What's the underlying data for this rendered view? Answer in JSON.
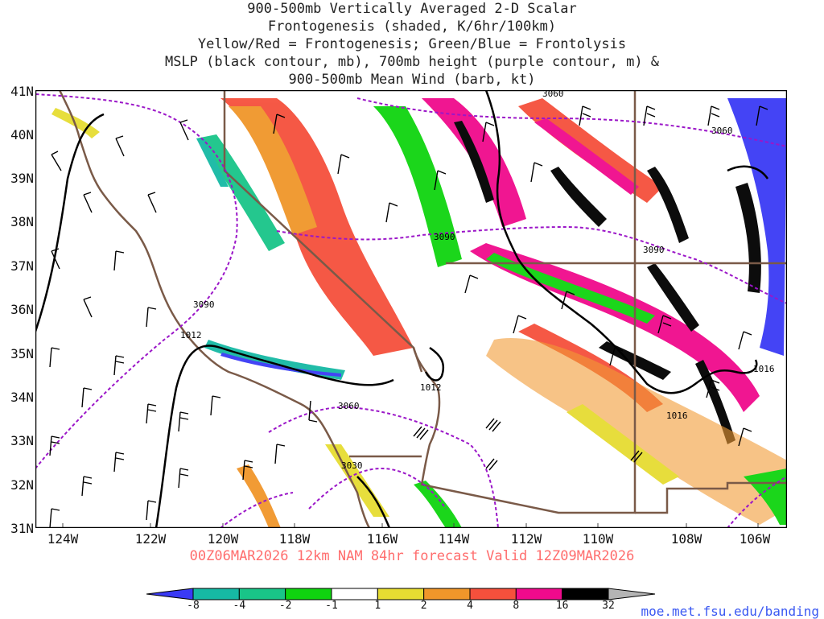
{
  "title": [
    "900-500mb Vertically Averaged 2-D Scalar",
    "Frontogenesis (shaded, K/6hr/100km)",
    "Yellow/Red = Frontogenesis;  Green/Blue = Frontolysis",
    "MSLP (black contour, mb), 700mb height (purple contour, m) &",
    "900-500mb Mean Wind (barb, kt)"
  ],
  "lat_labels": [
    "41N",
    "40N",
    "39N",
    "38N",
    "37N",
    "36N",
    "35N",
    "34N",
    "33N",
    "32N",
    "31N"
  ],
  "lon_labels": [
    "124W",
    "122W",
    "120W",
    "118W",
    "116W",
    "114W",
    "112W",
    "110W",
    "108W",
    "106W"
  ],
  "contour_labels": {
    "height": [
      "3060",
      "3060",
      "3090",
      "3090",
      "3090",
      "3060",
      "3030"
    ],
    "mslp": [
      "1012",
      "1012",
      "1016",
      "1016"
    ]
  },
  "footer": "00Z06MAR2026 12km NAM 84hr forecast Valid 12Z09MAR2026",
  "colorbar": {
    "labels": [
      "-8",
      "-4",
      "-2",
      "-1",
      "1",
      "2",
      "4",
      "8",
      "16",
      "32"
    ],
    "colors": [
      "#3a3af5",
      "#16b9a4",
      "#19c588",
      "#0fd40f",
      "#ffffff",
      "#e6dc32",
      "#f0962a",
      "#f5503c",
      "#f00a8c",
      "#000000",
      "#b4b4b4"
    ]
  },
  "credit": "moe.met.fsu.edu/banding"
}
